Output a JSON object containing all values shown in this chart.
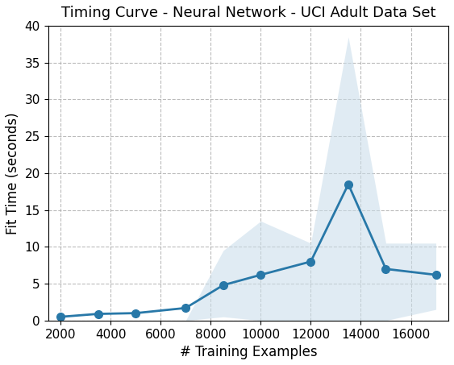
{
  "title": "Timing Curve - Neural Network - UCI Adult Data Set",
  "xlabel": "# Training Examples",
  "ylabel": "Fit Time (seconds)",
  "x": [
    2000,
    3500,
    5000,
    7000,
    8500,
    10000,
    12000,
    13500,
    15000,
    17000
  ],
  "y_mean": [
    0.5,
    0.9,
    1.0,
    1.7,
    4.8,
    6.2,
    8.0,
    18.5,
    7.0,
    6.2
  ],
  "y_lower": [
    0.0,
    0.0,
    0.0,
    0.0,
    0.5,
    0.0,
    0.0,
    -3.5,
    0.0,
    1.5
  ],
  "y_upper": [
    0.0,
    0.0,
    0.0,
    0.0,
    9.5,
    13.5,
    10.5,
    38.5,
    10.5,
    10.5
  ],
  "ylim": [
    0,
    40
  ],
  "xlim": [
    1500,
    17500
  ],
  "line_color": "#2878a8",
  "fill_color": "#c8dcea",
  "fill_alpha": 0.55,
  "marker": "o",
  "markersize": 7,
  "linewidth": 2,
  "grid_color": "#aaaaaa",
  "grid_linestyle": "--",
  "grid_alpha": 0.8,
  "background_color": "#ffffff",
  "title_fontsize": 13,
  "label_fontsize": 12,
  "tick_fontsize": 11,
  "yticks": [
    0,
    5,
    10,
    15,
    20,
    25,
    30,
    35,
    40
  ],
  "xticks": [
    2000,
    4000,
    6000,
    8000,
    10000,
    12000,
    14000,
    16000
  ]
}
